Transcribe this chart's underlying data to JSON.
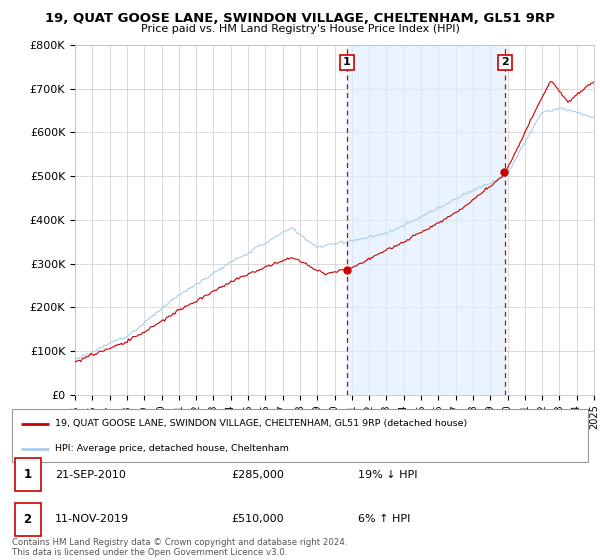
{
  "title": "19, QUAT GOOSE LANE, SWINDON VILLAGE, CHELTENHAM, GL51 9RP",
  "subtitle": "Price paid vs. HM Land Registry's House Price Index (HPI)",
  "legend_line1": "19, QUAT GOOSE LANE, SWINDON VILLAGE, CHELTENHAM, GL51 9RP (detached house)",
  "legend_line2": "HPI: Average price, detached house, Cheltenham",
  "sale1_label": "1",
  "sale1_date": "21-SEP-2010",
  "sale1_price": "£285,000",
  "sale1_hpi": "19% ↓ HPI",
  "sale2_label": "2",
  "sale2_date": "11-NOV-2019",
  "sale2_price": "£510,000",
  "sale2_hpi": "6% ↑ HPI",
  "footer": "Contains HM Land Registry data © Crown copyright and database right 2024.\nThis data is licensed under the Open Government Licence v3.0.",
  "hpi_color": "#aecde8",
  "sale_color": "#cc0000",
  "shade_color": "#ddeeff",
  "dashed_color": "#cc0000",
  "ylim": [
    0,
    800000
  ],
  "yticks": [
    0,
    100000,
    200000,
    300000,
    400000,
    500000,
    600000,
    700000,
    800000
  ],
  "sale1_year": 2010.72,
  "sale2_year": 2019.86,
  "xmin": 1995,
  "xmax": 2025
}
